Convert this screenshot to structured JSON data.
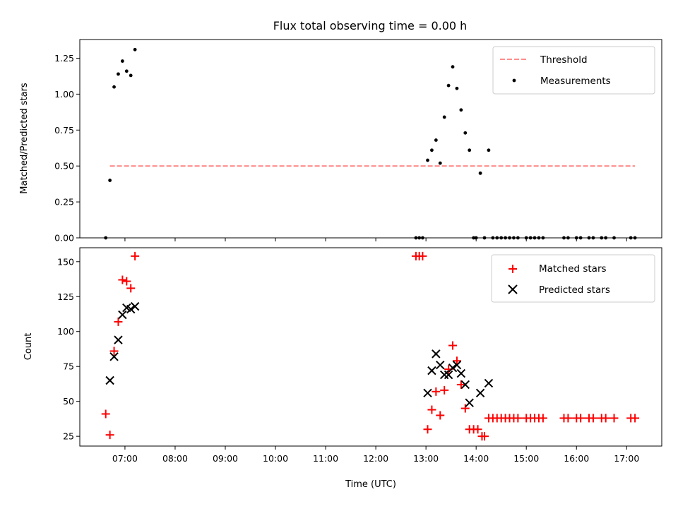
{
  "title": "Flux total observing time = 0.00 h",
  "xlabel": "Time (UTC)",
  "x_ticks": [
    "07:00",
    "08:00",
    "09:00",
    "10:00",
    "11:00",
    "12:00",
    "13:00",
    "14:00",
    "15:00",
    "16:00",
    "17:00"
  ],
  "colors": {
    "threshold": "#ff7f7f",
    "measurements": "#000000",
    "matched": "#ff0000",
    "predicted": "#000000"
  },
  "chart_data": [
    {
      "type": "scatter",
      "ylabel": "Matched/Predicted stars",
      "xlim": [
        "06:06",
        "17:42"
      ],
      "ylim": [
        0,
        1.38
      ],
      "y_ticks": [
        "0.00",
        "0.25",
        "0.50",
        "0.75",
        "1.00",
        "1.25"
      ],
      "legend": {
        "placement": "top-right",
        "entries": [
          "Threshold",
          "Measurements"
        ]
      },
      "series": [
        {
          "name": "Threshold",
          "kind": "dashed-line",
          "x": [
            "06:42",
            "17:10"
          ],
          "y": [
            0.5,
            0.5
          ]
        },
        {
          "name": "Measurements",
          "kind": "points",
          "x": [
            "06:37",
            "06:42",
            "06:47",
            "06:52",
            "06:57",
            "07:02",
            "07:07",
            "07:12",
            "12:48",
            "12:52",
            "12:56",
            "13:02",
            "13:07",
            "13:12",
            "13:17",
            "13:22",
            "13:27",
            "13:32",
            "13:37",
            "13:42",
            "13:47",
            "13:52",
            "13:57",
            "14:00",
            "14:05",
            "14:10",
            "14:15",
            "14:20",
            "14:25",
            "14:30",
            "14:35",
            "14:40",
            "14:45",
            "14:50",
            "15:00",
            "15:05",
            "15:10",
            "15:15",
            "15:20",
            "15:45",
            "15:50",
            "16:00",
            "16:05",
            "16:15",
            "16:20",
            "16:30",
            "16:35",
            "16:45",
            "17:05",
            "17:10"
          ],
          "y": [
            0,
            0.4,
            1.05,
            1.14,
            1.23,
            1.16,
            1.13,
            1.31,
            0,
            0,
            0,
            0.54,
            0.61,
            0.68,
            0.52,
            0.84,
            1.06,
            1.19,
            1.04,
            0.89,
            0.73,
            0.61,
            0,
            0,
            0.45,
            0,
            0.61,
            0,
            0,
            0,
            0,
            0,
            0,
            0,
            0,
            0,
            0,
            0,
            0,
            0,
            0,
            0,
            0,
            0,
            0,
            0,
            0,
            0,
            0,
            0
          ]
        }
      ]
    },
    {
      "type": "scatter",
      "ylabel": "Count",
      "xlim": [
        "06:06",
        "17:42"
      ],
      "ylim": [
        18,
        160
      ],
      "y_ticks": [
        "25",
        "50",
        "75",
        "100",
        "125",
        "150"
      ],
      "legend": {
        "placement": "top-right",
        "entries": [
          "Matched stars",
          "Predicted stars"
        ]
      },
      "series": [
        {
          "name": "Matched stars",
          "marker": "+",
          "x": [
            "06:37",
            "06:42",
            "06:47",
            "06:52",
            "06:57",
            "07:02",
            "07:07",
            "07:12",
            "12:48",
            "12:52",
            "12:56",
            "13:02",
            "13:07",
            "13:12",
            "13:17",
            "13:22",
            "13:27",
            "13:32",
            "13:37",
            "13:42",
            "13:47",
            "13:52",
            "13:57",
            "14:02",
            "14:07",
            "14:10",
            "14:15",
            "14:20",
            "14:25",
            "14:30",
            "14:35",
            "14:40",
            "14:45",
            "14:50",
            "15:00",
            "15:05",
            "15:10",
            "15:15",
            "15:20",
            "15:45",
            "15:50",
            "16:00",
            "16:05",
            "16:15",
            "16:20",
            "16:30",
            "16:35",
            "16:45",
            "17:05",
            "17:10"
          ],
          "y": [
            41,
            26,
            86,
            107,
            137,
            136,
            131,
            154,
            154,
            154,
            154,
            30,
            44,
            57,
            40,
            58,
            73,
            90,
            79,
            62,
            45,
            30,
            30,
            30,
            25,
            25,
            38,
            38,
            38,
            38,
            38,
            38,
            38,
            38,
            38,
            38,
            38,
            38,
            38,
            38,
            38,
            38,
            38,
            38,
            38,
            38,
            38,
            38,
            38,
            38
          ]
        },
        {
          "name": "Predicted stars",
          "marker": "x",
          "x": [
            "06:42",
            "06:47",
            "06:52",
            "06:57",
            "07:02",
            "07:07",
            "07:12",
            "13:02",
            "13:07",
            "13:12",
            "13:17",
            "13:22",
            "13:27",
            "13:32",
            "13:37",
            "13:42",
            "13:47",
            "13:52",
            "14:05",
            "14:15"
          ],
          "y": [
            65,
            82,
            94,
            112,
            117,
            116,
            118,
            56,
            72,
            84,
            76,
            69,
            69,
            74,
            76,
            70,
            62,
            49,
            56,
            63
          ]
        }
      ]
    }
  ]
}
